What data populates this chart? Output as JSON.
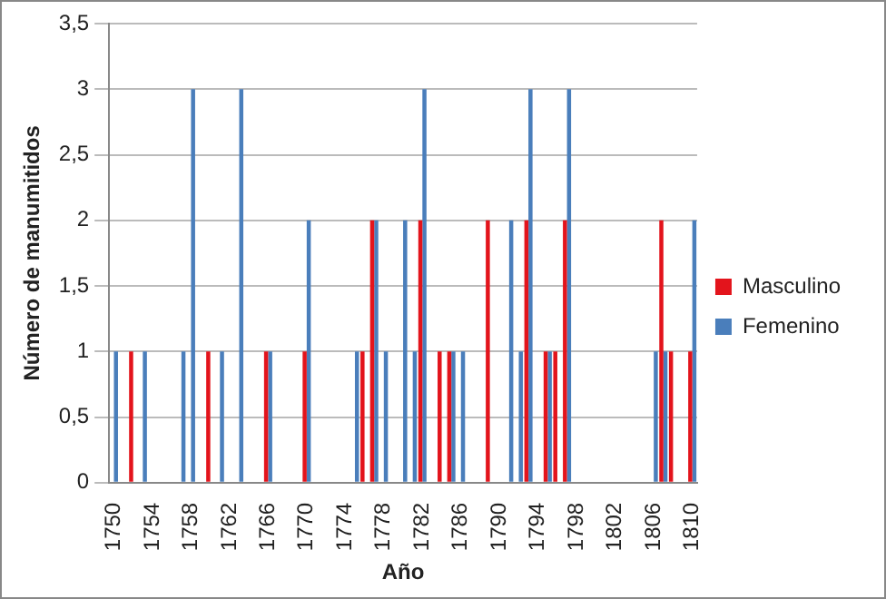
{
  "chart_data": {
    "type": "bar",
    "xlabel": "Año",
    "ylabel": "Número de manumitidos",
    "categories": [
      "1750",
      null,
      null,
      null,
      "1754",
      null,
      null,
      null,
      "1758",
      null,
      null,
      null,
      "1762",
      null,
      null,
      null,
      "1766",
      null,
      null,
      null,
      "1770",
      null,
      null,
      null,
      "1774",
      null,
      null,
      null,
      "1778",
      null,
      null,
      null,
      "1782",
      null,
      null,
      null,
      "1786",
      null,
      null,
      null,
      "1790",
      null,
      null,
      null,
      "1794",
      null,
      null,
      null,
      "1798",
      null,
      null,
      null,
      "1802",
      null,
      null,
      null,
      "1806",
      null,
      null,
      null,
      "1810"
    ],
    "series": [
      {
        "name": "Masculino",
        "color": "#e3141c",
        "values": [
          0,
          0,
          1,
          0,
          0,
          0,
          0,
          0,
          0,
          0,
          1,
          0,
          0,
          0,
          0,
          0,
          1,
          0,
          0,
          0,
          1,
          0,
          0,
          0,
          0,
          0,
          1,
          2,
          0,
          0,
          0,
          0,
          2,
          0,
          1,
          1,
          0,
          0,
          0,
          2,
          0,
          0,
          0,
          2,
          0,
          1,
          1,
          2,
          0,
          0,
          0,
          0,
          0,
          0,
          0,
          0,
          0,
          2,
          1,
          0,
          1
        ]
      },
      {
        "name": "Femenino",
        "color": "#4a7ebb",
        "values": [
          1,
          0,
          0,
          1,
          0,
          0,
          0,
          1,
          3,
          0,
          0,
          1,
          0,
          3,
          0,
          0,
          1,
          0,
          0,
          0,
          2,
          0,
          0,
          0,
          0,
          1,
          0,
          2,
          1,
          0,
          2,
          1,
          3,
          0,
          0,
          1,
          1,
          0,
          0,
          0,
          0,
          2,
          1,
          3,
          0,
          1,
          0,
          3,
          0,
          0,
          0,
          0,
          0,
          0,
          0,
          0,
          1,
          1,
          0,
          0,
          2
        ]
      }
    ],
    "ylim": [
      0,
      3.5
    ],
    "yticks": [
      0,
      {
        "value": 0.5,
        "label": "0,5"
      },
      1,
      {
        "value": 1.5,
        "label": "1,5"
      },
      2,
      {
        "value": 2.5,
        "label": "2,5"
      },
      3,
      {
        "value": 3.5,
        "label": "3,5"
      }
    ],
    "grid": "y",
    "legend": "right"
  }
}
